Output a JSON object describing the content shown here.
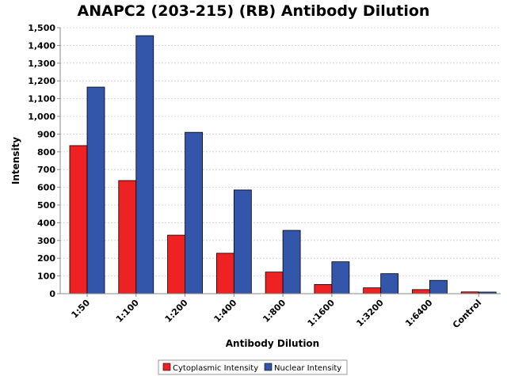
{
  "chart_data": {
    "type": "bar",
    "title": "ANAPC2 (203-215) (RB) Antibody Dilution",
    "xlabel": "Antibody Dilution",
    "ylabel": "Intensity",
    "categories": [
      "1:50",
      "1:100",
      "1:200",
      "1:400",
      "1:800",
      "1:1600",
      "1:3200",
      "1:6400",
      "Control"
    ],
    "ylim": [
      0,
      1500
    ],
    "yticks": [
      0,
      100,
      200,
      300,
      400,
      500,
      600,
      700,
      800,
      900,
      1000,
      1100,
      1200,
      1300,
      1400,
      1500
    ],
    "ytick_labels": [
      "0",
      "100",
      "200",
      "300",
      "400",
      "500",
      "600",
      "700",
      "800",
      "900",
      "1,000",
      "1,100",
      "1,200",
      "1,300",
      "1,400",
      "1,500"
    ],
    "grid": true,
    "legend_position": "bottom",
    "series": [
      {
        "name": "Cytoplasmic Intensity",
        "color": "#ee2222",
        "values": [
          835,
          638,
          330,
          228,
          122,
          52,
          33,
          23,
          10
        ]
      },
      {
        "name": "Nuclear Intensity",
        "color": "#3355aa",
        "values": [
          1165,
          1455,
          910,
          585,
          357,
          180,
          113,
          75,
          9
        ]
      }
    ]
  }
}
